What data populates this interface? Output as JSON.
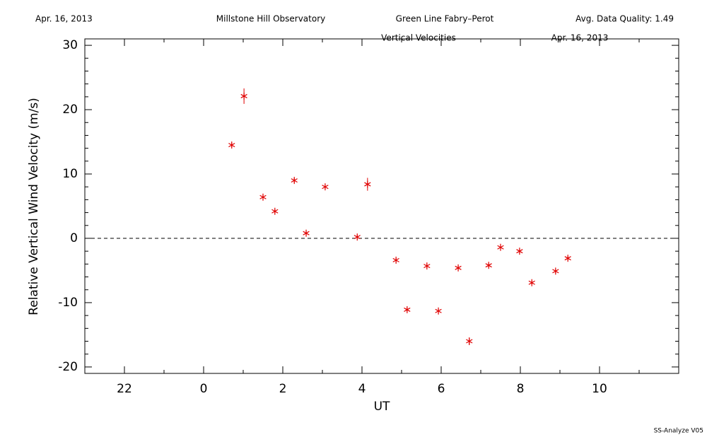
{
  "header": {
    "date": "Apr. 16, 2013",
    "observatory": "Millstone Hill Observatory",
    "instrument": "Green Line Fabry–Perot",
    "quality": "Avg. Data Quality: 1.49"
  },
  "footer": "SS-Analyze V05",
  "chart_data": {
    "type": "scatter",
    "title": "Vertical Velocities",
    "subtitle": "Apr. 16, 2013",
    "xlabel": "UT",
    "ylabel": "Relative Vertical Wind Velocity (m/s)",
    "x": [
      0.71,
      1.02,
      1.5,
      1.8,
      2.29,
      2.59,
      3.07,
      3.88,
      4.14,
      4.86,
      5.14,
      5.64,
      5.93,
      6.43,
      6.71,
      7.2,
      7.5,
      7.98,
      8.29,
      8.89,
      9.2
    ],
    "values": [
      14.5,
      22.1,
      6.4,
      4.2,
      9.0,
      0.8,
      8.0,
      0.2,
      8.4,
      -3.4,
      -11.1,
      -4.3,
      -11.3,
      -4.6,
      -16.0,
      -4.2,
      -1.4,
      -2.0,
      -6.9,
      -5.1,
      -3.1
    ],
    "errors": [
      0.3,
      1.2,
      0.3,
      0.3,
      0.4,
      0.3,
      0.3,
      0.3,
      1.0,
      0.3,
      0.3,
      0.3,
      0.3,
      0.3,
      0.6,
      0.3,
      0.3,
      0.3,
      0.3,
      0.3,
      0.3
    ],
    "color": "#e00000",
    "xlim": [
      -3,
      12
    ],
    "ylim": [
      -21,
      31
    ],
    "xticks": [
      {
        "value": -2,
        "label": "22"
      },
      0,
      2,
      4,
      6,
      8,
      10
    ],
    "yticks": [
      -20,
      -10,
      0,
      10,
      20,
      30
    ],
    "xminor": 2,
    "yminor": 5,
    "reference_line": 0
  }
}
